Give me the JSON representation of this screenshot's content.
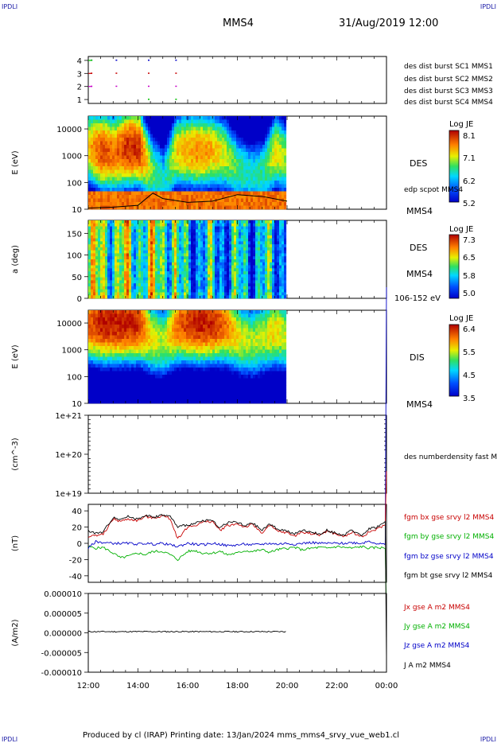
{
  "header": {
    "corner_tl": "IPDLI",
    "corner_tr": "IPDLI",
    "corner_bl": "IPDLI",
    "corner_br": "IPDLI",
    "spacecraft": "MMS4",
    "datetime": "31/Aug/2019 12:00"
  },
  "footer": {
    "text": "Produced by cl (IRAP)   Printing date: 13/Jan/2024   mms_mms4_srvy_vue_web1.cl"
  },
  "panels": {
    "avail": {
      "legend": [
        {
          "text": "des dist burst SC1 MMS1",
          "color": "#0000c8"
        },
        {
          "text": "des dist burst SC2 MMS2",
          "color": "#c800c8"
        },
        {
          "text": "des dist burst SC3 MMS3",
          "color": "#c80000"
        },
        {
          "text": "des dist burst SC4 MMS4",
          "color": "#00c000"
        }
      ]
    },
    "des_energy": {
      "ylabel": "E (eV)",
      "species": "DES",
      "overlay": "edp scpot MMS4",
      "sc": "MMS4",
      "cb_title": "Log JE",
      "cb_ticks": [
        "8.1",
        "7.1",
        "6.2",
        "5.2"
      ]
    },
    "des_pitch": {
      "ylabel": "a (deg)",
      "species": "DES",
      "sc": "MMS4",
      "range": "106-152 eV",
      "cb_title": "Log JE",
      "cb_ticks": [
        "7.3",
        "6.5",
        "5.8",
        "5.0"
      ]
    },
    "dis_energy": {
      "ylabel": "E (eV)",
      "species": "DIS",
      "sc": "MMS4",
      "cb_title": "Log JE",
      "cb_ticks": [
        "6.4",
        "5.5",
        "4.5",
        "3.5"
      ]
    },
    "density": {
      "ylabel": "(cm^-3)",
      "legend": "des numberdensity fast M"
    },
    "bfield": {
      "ylabel": "(nT)",
      "legend": [
        {
          "text": "fgm bx gse srvy l2 MMS4",
          "color": "#c80000"
        },
        {
          "text": "fgm by gse srvy l2 MMS4",
          "color": "#00b000"
        },
        {
          "text": "fgm bz gse srvy l2 MMS4",
          "color": "#0000c8"
        },
        {
          "text": "fgm bt gse srvy l2 MMS4",
          "color": "#000000"
        }
      ]
    },
    "current": {
      "ylabel": "(A/m2)",
      "legend": [
        {
          "text": "Jx gse A m2 MMS4",
          "color": "#c80000"
        },
        {
          "text": "Jy gse A m2 MMS4",
          "color": "#00b000"
        },
        {
          "text": "Jz gse A m2 MMS4",
          "color": "#0000c8"
        },
        {
          "text": "J A m2 MMS4",
          "color": "#000000"
        }
      ]
    }
  },
  "chart_data": [
    {
      "type": "scatter",
      "panel": "spacecraft availability",
      "yticks": [
        "1",
        "2",
        "3",
        "4"
      ],
      "ylim": [
        0.7,
        4.3
      ],
      "series": [
        {
          "name": "des dist burst SC1 MMS1",
          "color": "#0000c8",
          "x": [
            12.1,
            13.1,
            14.4,
            15.5
          ],
          "y": [
            4,
            4,
            4,
            4
          ]
        },
        {
          "name": "des dist burst SC2 MMS2",
          "color": "#c800c8",
          "x": [
            12.1,
            13.1,
            14.4,
            15.5
          ],
          "y": [
            2,
            2,
            2,
            2
          ]
        },
        {
          "name": "des dist burst SC3 MMS3",
          "color": "#c80000",
          "x": [
            12.1,
            13.1,
            14.4,
            15.5
          ],
          "y": [
            3,
            3,
            3,
            3
          ]
        },
        {
          "name": "des dist burst SC4 MMS4",
          "color": "#00c000",
          "x": [
            12.1,
            14.4,
            15.5
          ],
          "y": [
            4,
            1,
            1
          ]
        }
      ]
    },
    {
      "type": "heatmap",
      "panel": "DES energy spectrogram",
      "ylabel": "E (eV)",
      "yscale": "log",
      "yticks": [
        "10",
        "100",
        "1000",
        "10000"
      ],
      "ylim": [
        10,
        30000
      ],
      "zlabel": "Log JE",
      "zlim": [
        5.2,
        8.1
      ],
      "data_end_hour": 20.0,
      "columns": [
        {
          "t": 12.0,
          "peak": 2000,
          "level": 7.3
        },
        {
          "t": 12.5,
          "peak": 1500,
          "level": 7.8
        },
        {
          "t": 13.0,
          "peak": 1200,
          "level": 7.6
        },
        {
          "t": 13.5,
          "peak": 2000,
          "level": 7.9
        },
        {
          "t": 14.0,
          "peak": 2000,
          "level": 7.9
        },
        {
          "t": 14.5,
          "peak": 300,
          "level": 6.8
        },
        {
          "t": 15.0,
          "peak": 150,
          "level": 6.3
        },
        {
          "t": 15.5,
          "peak": 1500,
          "level": 7.2
        },
        {
          "t": 16.0,
          "peak": 1500,
          "level": 7.4
        },
        {
          "t": 16.5,
          "peak": 1500,
          "level": 7.5
        },
        {
          "t": 17.0,
          "peak": 1500,
          "level": 7.3
        },
        {
          "t": 17.5,
          "peak": 1000,
          "level": 7.0
        },
        {
          "t": 18.0,
          "peak": 300,
          "level": 6.6
        },
        {
          "t": 18.5,
          "peak": 200,
          "level": 6.4
        },
        {
          "t": 19.0,
          "peak": 250,
          "level": 6.5
        },
        {
          "t": 19.5,
          "peak": 1500,
          "level": 7.2
        },
        {
          "t": 20.0,
          "peak": 600,
          "level": 6.8
        }
      ],
      "scpot": {
        "x": [
          12,
          13,
          14,
          14.6,
          15,
          16,
          17,
          18,
          19,
          20
        ],
        "y": [
          11,
          12,
          14,
          40,
          25,
          18,
          20,
          35,
          30,
          20
        ]
      }
    },
    {
      "type": "heatmap",
      "panel": "DES pitch angle",
      "ylabel": "a (deg)",
      "yticks": [
        "0",
        "50",
        "100",
        "150"
      ],
      "ylim": [
        0,
        180
      ],
      "zlabel": "Log JE",
      "zlim": [
        5.0,
        7.3
      ],
      "energy_range": "106-152 eV",
      "data_end_hour": 20.0
    },
    {
      "type": "heatmap",
      "panel": "DIS energy spectrogram",
      "ylabel": "E (eV)",
      "yscale": "log",
      "yticks": [
        "10",
        "100",
        "1000",
        "10000"
      ],
      "ylim": [
        10,
        30000
      ],
      "zlabel": "Log JE",
      "zlim": [
        3.5,
        6.4
      ],
      "data_end_hour": 20.0,
      "columns": [
        {
          "t": 12.0,
          "peak": 10000,
          "level": 6.0
        },
        {
          "t": 12.5,
          "peak": 10000,
          "level": 6.3
        },
        {
          "t": 13.0,
          "peak": 10000,
          "level": 6.3
        },
        {
          "t": 13.5,
          "peak": 10000,
          "level": 6.3
        },
        {
          "t": 14.0,
          "peak": 10000,
          "level": 6.2
        },
        {
          "t": 14.5,
          "peak": 3000,
          "level": 5.4
        },
        {
          "t": 15.0,
          "peak": 2000,
          "level": 5.2
        },
        {
          "t": 15.5,
          "peak": 8000,
          "level": 5.9
        },
        {
          "t": 16.0,
          "peak": 10000,
          "level": 6.2
        },
        {
          "t": 16.5,
          "peak": 10000,
          "level": 6.3
        },
        {
          "t": 17.0,
          "peak": 10000,
          "level": 6.2
        },
        {
          "t": 17.5,
          "peak": 8000,
          "level": 5.9
        },
        {
          "t": 18.0,
          "peak": 3000,
          "level": 5.4
        },
        {
          "t": 18.5,
          "peak": 2000,
          "level": 5.2
        },
        {
          "t": 19.0,
          "peak": 3000,
          "level": 5.3
        },
        {
          "t": 19.5,
          "peak": 5000,
          "level": 5.5
        },
        {
          "t": 20.0,
          "peak": 3000,
          "level": 5.2
        }
      ]
    },
    {
      "type": "line",
      "panel": "density",
      "ylabel": "(cm^-3)",
      "yscale": "log",
      "yticks": [
        "1e+19",
        "1e+20",
        "1e+21"
      ],
      "ylim": [
        1e+19,
        1e+21
      ],
      "series": []
    },
    {
      "type": "line",
      "panel": "magnetic field",
      "ylabel": "(nT)",
      "yticks": [
        "-40",
        "-20",
        "0",
        "20",
        "40"
      ],
      "ylim": [
        -48,
        48
      ],
      "xlim": [
        12,
        24
      ],
      "series": [
        {
          "name": "fgm bx gse srvy l2 MMS4",
          "color": "#c80000",
          "x": [
            12,
            12.3,
            12.6,
            13,
            13.3,
            13.6,
            14,
            14.3,
            14.6,
            15,
            15.3,
            15.6,
            16,
            16.3,
            16.6,
            17,
            17.3,
            17.6,
            18,
            18.3,
            18.6,
            19,
            19.3,
            19.6,
            20,
            20.3,
            20.6,
            21,
            21.3,
            21.6,
            22,
            22.3,
            22.6,
            23,
            23.3,
            23.6,
            24
          ],
          "y": [
            8,
            10,
            11,
            30,
            27,
            30,
            28,
            33,
            31,
            34,
            30,
            6,
            20,
            22,
            26,
            27,
            16,
            22,
            24,
            20,
            23,
            13,
            22,
            15,
            13,
            9,
            14,
            12,
            10,
            15,
            11,
            8,
            14,
            8,
            14,
            17,
            24
          ]
        },
        {
          "name": "fgm by gse srvy l2 MMS4",
          "color": "#00b000",
          "x": [
            12,
            12.3,
            12.6,
            13,
            13.3,
            13.6,
            14,
            14.3,
            14.6,
            15,
            15.3,
            15.6,
            16,
            16.3,
            16.6,
            17,
            17.3,
            17.6,
            18,
            18.3,
            18.6,
            19,
            19.3,
            19.6,
            20,
            20.3,
            20.6,
            21,
            21.3,
            21.6,
            22,
            22.3,
            22.6,
            23,
            23.3,
            23.6,
            24
          ],
          "y": [
            -4,
            -6,
            -5,
            -12,
            -18,
            -16,
            -12,
            -14,
            -10,
            -10,
            -14,
            -20,
            -10,
            -9,
            -12,
            -12,
            -10,
            -14,
            -12,
            -9,
            -10,
            -8,
            -11,
            -8,
            -6,
            -5,
            -8,
            -6,
            -5,
            -6,
            -4,
            -5,
            -6,
            -4,
            -6,
            -5,
            -6
          ]
        },
        {
          "name": "fgm bz gse srvy l2 MMS4",
          "color": "#0000c8",
          "x": [
            12,
            12.3,
            12.6,
            13,
            13.3,
            13.6,
            14,
            14.3,
            14.6,
            15,
            15.3,
            15.6,
            16,
            16.3,
            16.6,
            17,
            17.3,
            17.6,
            18,
            18.3,
            18.6,
            19,
            19.3,
            19.6,
            20,
            20.3,
            20.6,
            21,
            21.3,
            21.6,
            22,
            22.3,
            22.6,
            23,
            23.3,
            23.6,
            24
          ],
          "y": [
            -6,
            2,
            1,
            0,
            0,
            0,
            -1,
            0,
            -1,
            0,
            -2,
            -4,
            0,
            -1,
            -2,
            0,
            -1,
            -3,
            -2,
            -1,
            -2,
            -1,
            0,
            -1,
            0,
            -1,
            0,
            1,
            0,
            0,
            0,
            0,
            1,
            0,
            3,
            0,
            -2
          ]
        },
        {
          "name": "fgm bt gse srvy l2 MMS4",
          "color": "#000000",
          "x": [
            12,
            12.3,
            12.6,
            13,
            13.3,
            13.6,
            14,
            14.3,
            14.6,
            15,
            15.3,
            15.6,
            16,
            16.3,
            16.6,
            17,
            17.3,
            17.6,
            18,
            18.3,
            18.6,
            19,
            19.3,
            19.6,
            20,
            20.3,
            20.6,
            21,
            21.3,
            21.6,
            22,
            22.3,
            22.6,
            23,
            23.3,
            23.6,
            24
          ],
          "y": [
            16,
            12,
            14,
            32,
            30,
            33,
            30,
            35,
            32,
            35,
            33,
            20,
            23,
            24,
            28,
            28,
            19,
            26,
            26,
            21,
            25,
            16,
            24,
            18,
            15,
            11,
            16,
            14,
            11,
            16,
            12,
            10,
            16,
            10,
            18,
            20,
            27
          ]
        }
      ]
    },
    {
      "type": "line",
      "panel": "current density",
      "ylabel": "(A/m2)",
      "yticks": [
        "-0.000010",
        "-0.000005",
        "0.000000",
        "0.000005",
        "0.000010"
      ],
      "ylim": [
        -1e-05,
        1e-05
      ],
      "xlabel_ticks": [
        "12:00",
        "14:00",
        "16:00",
        "18:00",
        "20:00",
        "22:00",
        "00:00"
      ],
      "series": [
        {
          "name": "J A m2 MMS4",
          "color": "#000000",
          "x": [
            12,
            20
          ],
          "y": [
            3e-07,
            3e-07
          ]
        }
      ]
    }
  ]
}
